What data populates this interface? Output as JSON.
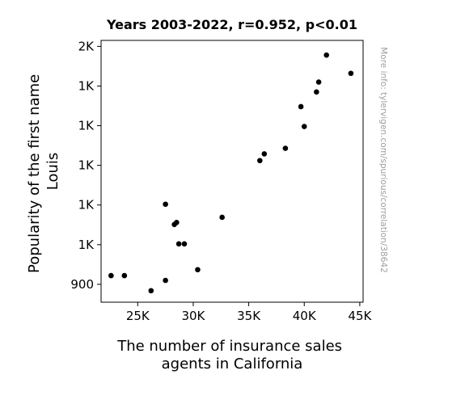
{
  "chart_data": {
    "type": "scatter",
    "title": "Years 2003-2022, r=0.952, p<0.01",
    "xlabel": [
      "The number of insurance sales",
      "agents in California"
    ],
    "ylabel": [
      "Popularity of the first name",
      "Louis"
    ],
    "xlim": [
      21700,
      45300
    ],
    "ylim": [
      855,
      1515
    ],
    "x_ticks": [
      {
        "value": 25000,
        "label": "25K"
      },
      {
        "value": 30000,
        "label": "30K"
      },
      {
        "value": 35000,
        "label": "35K"
      },
      {
        "value": 40000,
        "label": "40K"
      },
      {
        "value": 45000,
        "label": "45K"
      }
    ],
    "y_ticks": [
      {
        "value": 900,
        "label": "900"
      },
      {
        "value": 1000,
        "label": "1K"
      },
      {
        "value": 1100,
        "label": "1K"
      },
      {
        "value": 1200,
        "label": "1K"
      },
      {
        "value": 1300,
        "label": "1K"
      },
      {
        "value": 1400,
        "label": "1K"
      },
      {
        "value": 1500,
        "label": "2K"
      }
    ],
    "points": [
      {
        "x": 22600,
        "y": 922
      },
      {
        "x": 23800,
        "y": 922
      },
      {
        "x": 26200,
        "y": 884
      },
      {
        "x": 27500,
        "y": 910
      },
      {
        "x": 27500,
        "y": 1102
      },
      {
        "x": 28300,
        "y": 1051
      },
      {
        "x": 28500,
        "y": 1056
      },
      {
        "x": 28700,
        "y": 1002
      },
      {
        "x": 29200,
        "y": 1002
      },
      {
        "x": 30400,
        "y": 937
      },
      {
        "x": 32600,
        "y": 1069
      },
      {
        "x": 36000,
        "y": 1212
      },
      {
        "x": 36400,
        "y": 1229
      },
      {
        "x": 38300,
        "y": 1243
      },
      {
        "x": 39700,
        "y": 1348
      },
      {
        "x": 40000,
        "y": 1298
      },
      {
        "x": 41100,
        "y": 1385
      },
      {
        "x": 41300,
        "y": 1410
      },
      {
        "x": 42000,
        "y": 1478
      },
      {
        "x": 44200,
        "y": 1432
      }
    ],
    "grid": false,
    "marker_color": "#000000"
  },
  "watermark": "More info: tylervigen.com/spurious/correlation/38642"
}
